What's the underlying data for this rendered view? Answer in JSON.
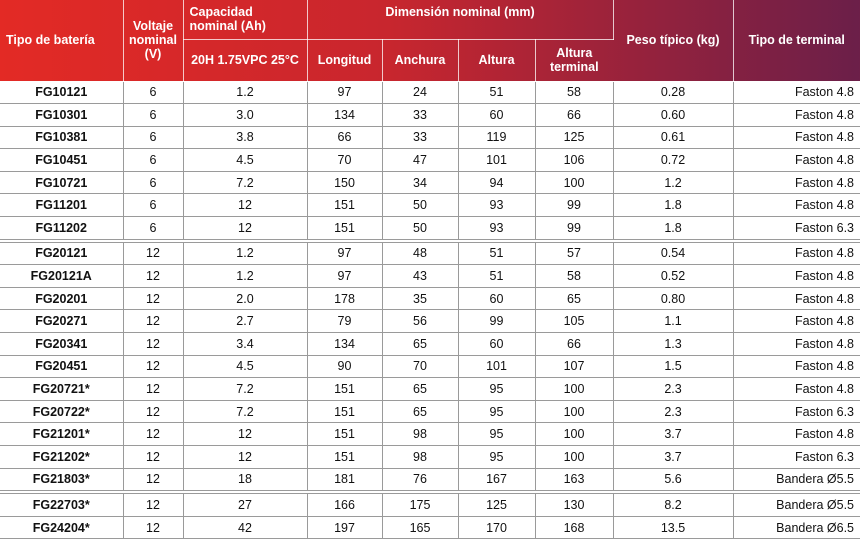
{
  "header": {
    "battery_type": "Tipo de batería",
    "voltage": "Voltaje nominal (V)",
    "capacity": "Capacidad nominal (Ah)",
    "capacity_sub": "20H 1.75VPC 25°C",
    "dimension": "Dimensión nominal (mm)",
    "length": "Longitud",
    "width": "Anchura",
    "height": "Altura",
    "terminal_height": "Altura terminal",
    "weight": "Peso típico (kg)",
    "terminal_type": "Tipo de terminal"
  },
  "colors": {
    "header_left": "#e32a25",
    "header_right": "#6b1f49"
  },
  "rows": [
    {
      "type": "FG10121",
      "v": "6",
      "cap": "1.2",
      "l": "97",
      "w": "24",
      "h": "51",
      "ht": "58",
      "kg": "0.28",
      "term": "Faston 4.8"
    },
    {
      "type": "FG10301",
      "v": "6",
      "cap": "3.0",
      "l": "134",
      "w": "33",
      "h": "60",
      "ht": "66",
      "kg": "0.60",
      "term": "Faston 4.8"
    },
    {
      "type": "FG10381",
      "v": "6",
      "cap": "3.8",
      "l": "66",
      "w": "33",
      "h": "119",
      "ht": "125",
      "kg": "0.61",
      "term": "Faston 4.8"
    },
    {
      "type": "FG10451",
      "v": "6",
      "cap": "4.5",
      "l": "70",
      "w": "47",
      "h": "101",
      "ht": "106",
      "kg": "0.72",
      "term": "Faston 4.8"
    },
    {
      "type": "FG10721",
      "v": "6",
      "cap": "7.2",
      "l": "150",
      "w": "34",
      "h": "94",
      "ht": "100",
      "kg": "1.2",
      "term": "Faston 4.8"
    },
    {
      "type": "FG11201",
      "v": "6",
      "cap": "12",
      "l": "151",
      "w": "50",
      "h": "93",
      "ht": "99",
      "kg": "1.8",
      "term": "Faston 4.8"
    },
    {
      "type": "FG11202",
      "v": "6",
      "cap": "12",
      "l": "151",
      "w": "50",
      "h": "93",
      "ht": "99",
      "kg": "1.8",
      "term": "Faston 6.3"
    },
    {
      "type": "FG20121",
      "v": "12",
      "cap": "1.2",
      "l": "97",
      "w": "48",
      "h": "51",
      "ht": "57",
      "kg": "0.54",
      "term": "Faston 4.8"
    },
    {
      "type": "FG20121A",
      "v": "12",
      "cap": "1.2",
      "l": "97",
      "w": "43",
      "h": "51",
      "ht": "58",
      "kg": "0.52",
      "term": "Faston 4.8"
    },
    {
      "type": "FG20201",
      "v": "12",
      "cap": "2.0",
      "l": "178",
      "w": "35",
      "h": "60",
      "ht": "65",
      "kg": "0.80",
      "term": "Faston 4.8"
    },
    {
      "type": "FG20271",
      "v": "12",
      "cap": "2.7",
      "l": "79",
      "w": "56",
      "h": "99",
      "ht": "105",
      "kg": "1.1",
      "term": "Faston 4.8"
    },
    {
      "type": "FG20341",
      "v": "12",
      "cap": "3.4",
      "l": "134",
      "w": "65",
      "h": "60",
      "ht": "66",
      "kg": "1.3",
      "term": "Faston 4.8"
    },
    {
      "type": "FG20451",
      "v": "12",
      "cap": "4.5",
      "l": "90",
      "w": "70",
      "h": "101",
      "ht": "107",
      "kg": "1.5",
      "term": "Faston 4.8"
    },
    {
      "type": "FG20721*",
      "v": "12",
      "cap": "7.2",
      "l": "151",
      "w": "65",
      "h": "95",
      "ht": "100",
      "kg": "2.3",
      "term": "Faston 4.8"
    },
    {
      "type": "FG20722*",
      "v": "12",
      "cap": "7.2",
      "l": "151",
      "w": "65",
      "h": "95",
      "ht": "100",
      "kg": "2.3",
      "term": "Faston 6.3"
    },
    {
      "type": "FG21201*",
      "v": "12",
      "cap": "12",
      "l": "151",
      "w": "98",
      "h": "95",
      "ht": "100",
      "kg": "3.7",
      "term": "Faston 4.8"
    },
    {
      "type": "FG21202*",
      "v": "12",
      "cap": "12",
      "l": "151",
      "w": "98",
      "h": "95",
      "ht": "100",
      "kg": "3.7",
      "term": "Faston 6.3"
    },
    {
      "type": "FG21803*",
      "v": "12",
      "cap": "18",
      "l": "181",
      "w": "76",
      "h": "167",
      "ht": "163",
      "kg": "5.6",
      "term": "Bandera Ø5.5"
    },
    {
      "type": "FG22703*",
      "v": "12",
      "cap": "27",
      "l": "166",
      "w": "175",
      "h": "125",
      "ht": "130",
      "kg": "8.2",
      "term": "Bandera Ø5.5"
    },
    {
      "type": "FG24204*",
      "v": "12",
      "cap": "42",
      "l": "197",
      "w": "165",
      "h": "170",
      "ht": "168",
      "kg": "13.5",
      "term": "Bandera Ø6.5"
    }
  ],
  "group_starts": [
    7,
    18
  ]
}
